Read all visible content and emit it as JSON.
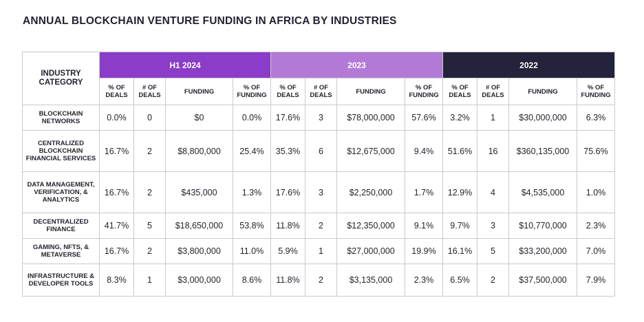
{
  "title": "ANNUAL BLOCKCHAIN VENTURE FUNDING IN AFRICA BY INDUSTRIES",
  "chart_data": {
    "type": "table",
    "row_header": "INDUSTRY CATEGORY",
    "groups": [
      {
        "label": "H1 2024",
        "color": "#8b3cc9"
      },
      {
        "label": "2023",
        "color": "#b27ad6"
      },
      {
        "label": "2022",
        "color": "#23233b"
      }
    ],
    "subcolumns": [
      "% OF DEALS",
      "# OF DEALS",
      "FUNDING",
      "% OF FUNDING"
    ],
    "rows": [
      {
        "category": "BLOCKCHAIN NETWORKS",
        "values": [
          "0.0%",
          "0",
          "$0",
          "0.0%",
          "17.6%",
          "3",
          "$78,000,000",
          "57.6%",
          "3.2%",
          "1",
          "$30,000,000",
          "6.3%"
        ]
      },
      {
        "category": "CENTRALIZED BLOCKCHAIN FINANCIAL SERVICES",
        "values": [
          "16.7%",
          "2",
          "$8,800,000",
          "25.4%",
          "35.3%",
          "6",
          "$12,675,000",
          "9.4%",
          "51.6%",
          "16",
          "$360,135,000",
          "75.6%"
        ]
      },
      {
        "category": "DATA MANAGEMENT, VERIFICATION, & ANALYTICS",
        "values": [
          "16.7%",
          "2",
          "$435,000",
          "1.3%",
          "17.6%",
          "3",
          "$2,250,000",
          "1.7%",
          "12.9%",
          "4",
          "$4,535,000",
          "1.0%"
        ]
      },
      {
        "category": "DECENTRALIZED FINANCE",
        "values": [
          "41.7%",
          "5",
          "$18,650,000",
          "53.8%",
          "11.8%",
          "2",
          "$12,350,000",
          "9.1%",
          "9.7%",
          "3",
          "$10,770,000",
          "2.3%"
        ]
      },
      {
        "category": "GAMING, NFTS, & METAVERSE",
        "values": [
          "16.7%",
          "2",
          "$3,800,000",
          "11.0%",
          "5.9%",
          "1",
          "$27,000,000",
          "19.9%",
          "16.1%",
          "5",
          "$33,200,000",
          "7.0%"
        ]
      },
      {
        "category": "INFRASTRUCTURE & DEVELOPER TOOLS",
        "values": [
          "8.3%",
          "1",
          "$3,000,000",
          "8.6%",
          "11.8%",
          "2",
          "$3,135,000",
          "2.3%",
          "6.5%",
          "2",
          "$37,500,000",
          "7.9%"
        ]
      }
    ]
  }
}
